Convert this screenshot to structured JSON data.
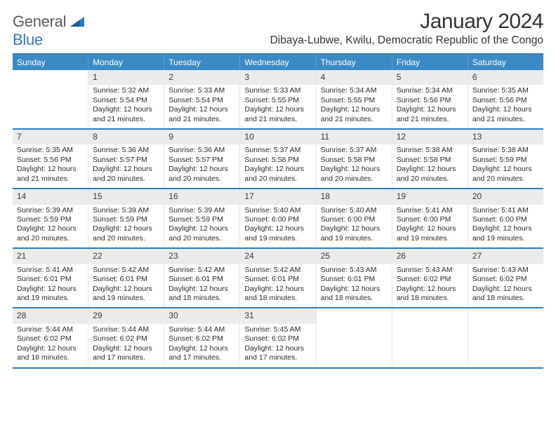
{
  "brand": {
    "part1": "General",
    "part2": "Blue"
  },
  "header": {
    "month_title": "January 2024",
    "location": "Dibaya-Lubwe, Kwilu, Democratic Republic of the Congo"
  },
  "colors": {
    "accent": "#2f7bbf",
    "header_bg": "#3a8ac6",
    "header_text": "#ffffff",
    "daynum_bg": "#ebebeb",
    "cell_border": "#e6e6e6",
    "body_text": "#333333"
  },
  "days_of_week": [
    "Sunday",
    "Monday",
    "Tuesday",
    "Wednesday",
    "Thursday",
    "Friday",
    "Saturday"
  ],
  "weeks": [
    [
      null,
      {
        "n": "1",
        "sr": "Sunrise: 5:32 AM",
        "ss": "Sunset: 5:54 PM",
        "d1": "Daylight: 12 hours",
        "d2": "and 21 minutes."
      },
      {
        "n": "2",
        "sr": "Sunrise: 5:33 AM",
        "ss": "Sunset: 5:54 PM",
        "d1": "Daylight: 12 hours",
        "d2": "and 21 minutes."
      },
      {
        "n": "3",
        "sr": "Sunrise: 5:33 AM",
        "ss": "Sunset: 5:55 PM",
        "d1": "Daylight: 12 hours",
        "d2": "and 21 minutes."
      },
      {
        "n": "4",
        "sr": "Sunrise: 5:34 AM",
        "ss": "Sunset: 5:55 PM",
        "d1": "Daylight: 12 hours",
        "d2": "and 21 minutes."
      },
      {
        "n": "5",
        "sr": "Sunrise: 5:34 AM",
        "ss": "Sunset: 5:56 PM",
        "d1": "Daylight: 12 hours",
        "d2": "and 21 minutes."
      },
      {
        "n": "6",
        "sr": "Sunrise: 5:35 AM",
        "ss": "Sunset: 5:56 PM",
        "d1": "Daylight: 12 hours",
        "d2": "and 21 minutes."
      }
    ],
    [
      {
        "n": "7",
        "sr": "Sunrise: 5:35 AM",
        "ss": "Sunset: 5:56 PM",
        "d1": "Daylight: 12 hours",
        "d2": "and 21 minutes."
      },
      {
        "n": "8",
        "sr": "Sunrise: 5:36 AM",
        "ss": "Sunset: 5:57 PM",
        "d1": "Daylight: 12 hours",
        "d2": "and 20 minutes."
      },
      {
        "n": "9",
        "sr": "Sunrise: 5:36 AM",
        "ss": "Sunset: 5:57 PM",
        "d1": "Daylight: 12 hours",
        "d2": "and 20 minutes."
      },
      {
        "n": "10",
        "sr": "Sunrise: 5:37 AM",
        "ss": "Sunset: 5:58 PM",
        "d1": "Daylight: 12 hours",
        "d2": "and 20 minutes."
      },
      {
        "n": "11",
        "sr": "Sunrise: 5:37 AM",
        "ss": "Sunset: 5:58 PM",
        "d1": "Daylight: 12 hours",
        "d2": "and 20 minutes."
      },
      {
        "n": "12",
        "sr": "Sunrise: 5:38 AM",
        "ss": "Sunset: 5:58 PM",
        "d1": "Daylight: 12 hours",
        "d2": "and 20 minutes."
      },
      {
        "n": "13",
        "sr": "Sunrise: 5:38 AM",
        "ss": "Sunset: 5:59 PM",
        "d1": "Daylight: 12 hours",
        "d2": "and 20 minutes."
      }
    ],
    [
      {
        "n": "14",
        "sr": "Sunrise: 5:39 AM",
        "ss": "Sunset: 5:59 PM",
        "d1": "Daylight: 12 hours",
        "d2": "and 20 minutes."
      },
      {
        "n": "15",
        "sr": "Sunrise: 5:39 AM",
        "ss": "Sunset: 5:59 PM",
        "d1": "Daylight: 12 hours",
        "d2": "and 20 minutes."
      },
      {
        "n": "16",
        "sr": "Sunrise: 5:39 AM",
        "ss": "Sunset: 5:59 PM",
        "d1": "Daylight: 12 hours",
        "d2": "and 20 minutes."
      },
      {
        "n": "17",
        "sr": "Sunrise: 5:40 AM",
        "ss": "Sunset: 6:00 PM",
        "d1": "Daylight: 12 hours",
        "d2": "and 19 minutes."
      },
      {
        "n": "18",
        "sr": "Sunrise: 5:40 AM",
        "ss": "Sunset: 6:00 PM",
        "d1": "Daylight: 12 hours",
        "d2": "and 19 minutes."
      },
      {
        "n": "19",
        "sr": "Sunrise: 5:41 AM",
        "ss": "Sunset: 6:00 PM",
        "d1": "Daylight: 12 hours",
        "d2": "and 19 minutes."
      },
      {
        "n": "20",
        "sr": "Sunrise: 5:41 AM",
        "ss": "Sunset: 6:00 PM",
        "d1": "Daylight: 12 hours",
        "d2": "and 19 minutes."
      }
    ],
    [
      {
        "n": "21",
        "sr": "Sunrise: 5:41 AM",
        "ss": "Sunset: 6:01 PM",
        "d1": "Daylight: 12 hours",
        "d2": "and 19 minutes."
      },
      {
        "n": "22",
        "sr": "Sunrise: 5:42 AM",
        "ss": "Sunset: 6:01 PM",
        "d1": "Daylight: 12 hours",
        "d2": "and 19 minutes."
      },
      {
        "n": "23",
        "sr": "Sunrise: 5:42 AM",
        "ss": "Sunset: 6:01 PM",
        "d1": "Daylight: 12 hours",
        "d2": "and 18 minutes."
      },
      {
        "n": "24",
        "sr": "Sunrise: 5:42 AM",
        "ss": "Sunset: 6:01 PM",
        "d1": "Daylight: 12 hours",
        "d2": "and 18 minutes."
      },
      {
        "n": "25",
        "sr": "Sunrise: 5:43 AM",
        "ss": "Sunset: 6:01 PM",
        "d1": "Daylight: 12 hours",
        "d2": "and 18 minutes."
      },
      {
        "n": "26",
        "sr": "Sunrise: 5:43 AM",
        "ss": "Sunset: 6:02 PM",
        "d1": "Daylight: 12 hours",
        "d2": "and 18 minutes."
      },
      {
        "n": "27",
        "sr": "Sunrise: 5:43 AM",
        "ss": "Sunset: 6:02 PM",
        "d1": "Daylight: 12 hours",
        "d2": "and 18 minutes."
      }
    ],
    [
      {
        "n": "28",
        "sr": "Sunrise: 5:44 AM",
        "ss": "Sunset: 6:02 PM",
        "d1": "Daylight: 12 hours",
        "d2": "and 18 minutes."
      },
      {
        "n": "29",
        "sr": "Sunrise: 5:44 AM",
        "ss": "Sunset: 6:02 PM",
        "d1": "Daylight: 12 hours",
        "d2": "and 17 minutes."
      },
      {
        "n": "30",
        "sr": "Sunrise: 5:44 AM",
        "ss": "Sunset: 6:02 PM",
        "d1": "Daylight: 12 hours",
        "d2": "and 17 minutes."
      },
      {
        "n": "31",
        "sr": "Sunrise: 5:45 AM",
        "ss": "Sunset: 6:02 PM",
        "d1": "Daylight: 12 hours",
        "d2": "and 17 minutes."
      },
      null,
      null,
      null
    ]
  ]
}
